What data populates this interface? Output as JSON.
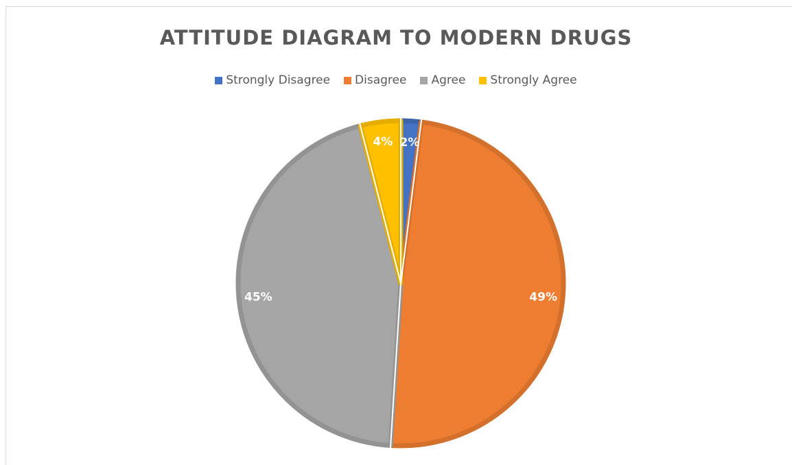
{
  "chart_data": {
    "type": "pie",
    "title": "ATTITUDE DIAGRAM TO MODERN DRUGS",
    "legend_position": "top",
    "categories": [
      "Strongly Disagree",
      "Disagree",
      "Agree",
      "Strongly Agree"
    ],
    "values": [
      2,
      49,
      45,
      4
    ],
    "labels": [
      "2%",
      "49%",
      "45%",
      "4%"
    ],
    "colors": [
      "#4472c4",
      "#ed7d31",
      "#a5a5a5",
      "#ffc000"
    ],
    "border_colors": [
      "#3c64ad",
      "#d3702c",
      "#939393",
      "#e5ad00"
    ]
  }
}
